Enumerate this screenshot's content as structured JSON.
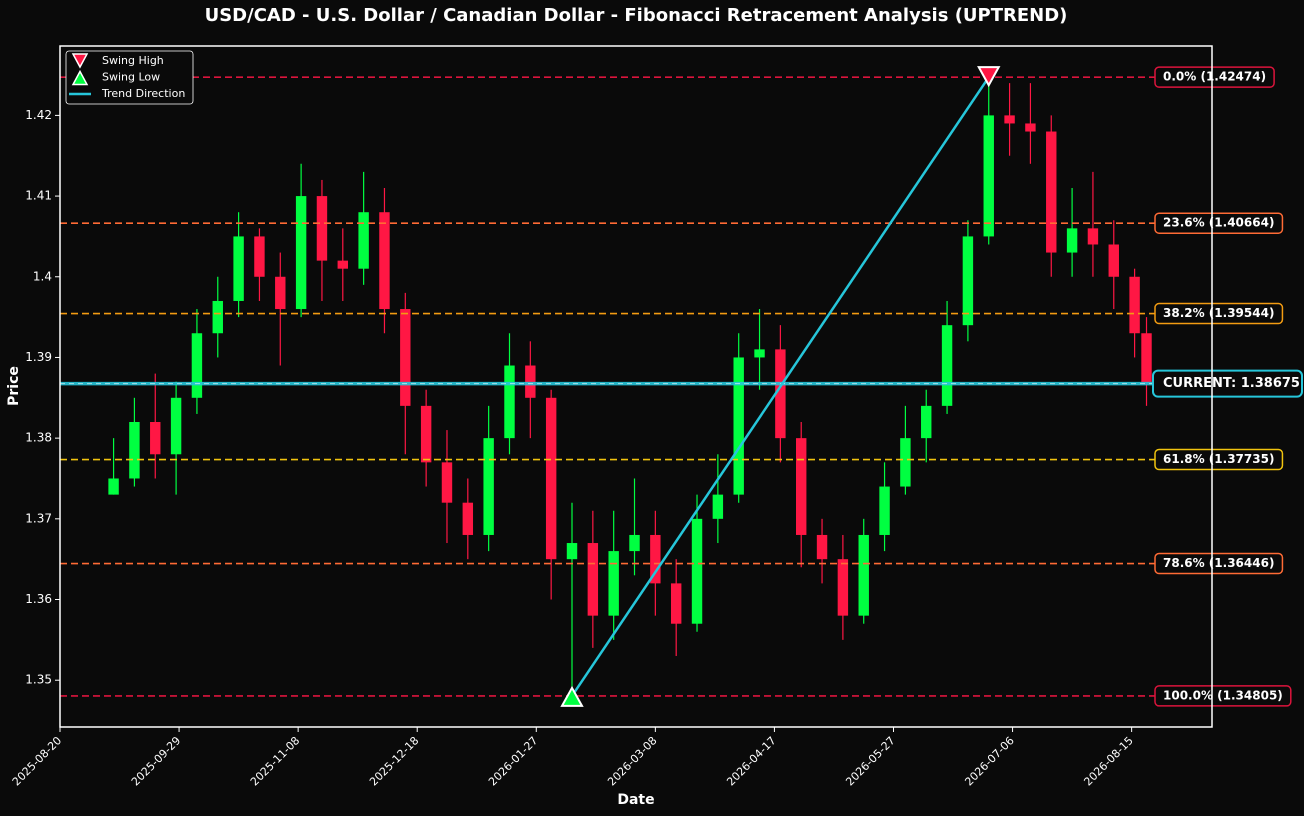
{
  "chart_data": {
    "type": "candlestick",
    "title": "USD/CAD - U.S. Dollar / Canadian Dollar - Fibonacci Retracement Analysis (UPTREND)",
    "x_label": "Date",
    "y_label": "Price",
    "x": [
      "2025-09-07",
      "2025-09-14",
      "2025-09-21",
      "2025-09-28",
      "2025-10-05",
      "2025-10-12",
      "2025-10-19",
      "2025-10-26",
      "2025-11-02",
      "2025-11-09",
      "2025-11-16",
      "2025-11-23",
      "2025-11-30",
      "2025-12-07",
      "2025-12-14",
      "2025-12-21",
      "2025-12-28",
      "2026-01-04",
      "2026-01-11",
      "2026-01-18",
      "2026-01-25",
      "2026-02-01",
      "2026-02-08",
      "2026-02-15",
      "2026-02-22",
      "2026-03-01",
      "2026-03-08",
      "2026-03-15",
      "2026-03-22",
      "2026-03-29",
      "2026-04-05",
      "2026-04-12",
      "2026-04-19",
      "2026-04-26",
      "2026-05-03",
      "2026-05-10",
      "2026-05-17",
      "2026-05-24",
      "2026-05-31",
      "2026-06-07",
      "2026-06-14",
      "2026-06-21",
      "2026-06-28",
      "2026-07-05",
      "2026-07-12",
      "2026-07-19",
      "2026-07-26",
      "2026-08-02",
      "2026-08-09",
      "2026-08-16",
      "2026-08-20"
    ],
    "open": [
      1.373,
      1.375,
      1.382,
      1.378,
      1.385,
      1.393,
      1.397,
      1.405,
      1.4,
      1.396,
      1.41,
      1.402,
      1.401,
      1.408,
      1.396,
      1.384,
      1.377,
      1.372,
      1.368,
      1.38,
      1.389,
      1.385,
      1.365,
      1.367,
      1.358,
      1.366,
      1.368,
      1.362,
      1.357,
      1.37,
      1.373,
      1.39,
      1.391,
      1.38,
      1.368,
      1.365,
      1.358,
      1.368,
      1.374,
      1.38,
      1.384,
      1.394,
      1.405,
      1.42,
      1.419,
      1.418,
      1.403,
      1.406,
      1.404,
      1.4,
      1.393
    ],
    "high": [
      1.38,
      1.385,
      1.388,
      1.387,
      1.396,
      1.4,
      1.408,
      1.406,
      1.403,
      1.414,
      1.412,
      1.406,
      1.413,
      1.411,
      1.398,
      1.386,
      1.381,
      1.375,
      1.384,
      1.393,
      1.392,
      1.386,
      1.372,
      1.371,
      1.371,
      1.375,
      1.371,
      1.365,
      1.373,
      1.378,
      1.393,
      1.396,
      1.394,
      1.382,
      1.37,
      1.368,
      1.37,
      1.377,
      1.384,
      1.386,
      1.397,
      1.407,
      1.42474,
      1.424,
      1.424,
      1.42,
      1.411,
      1.413,
      1.407,
      1.401,
      1.395
    ],
    "low": [
      1.373,
      1.374,
      1.375,
      1.373,
      1.383,
      1.39,
      1.395,
      1.397,
      1.389,
      1.395,
      1.397,
      1.397,
      1.399,
      1.393,
      1.378,
      1.374,
      1.367,
      1.365,
      1.366,
      1.378,
      1.38,
      1.36,
      1.34805,
      1.354,
      1.355,
      1.363,
      1.358,
      1.353,
      1.356,
      1.367,
      1.372,
      1.386,
      1.377,
      1.364,
      1.362,
      1.355,
      1.357,
      1.366,
      1.373,
      1.377,
      1.383,
      1.392,
      1.404,
      1.415,
      1.414,
      1.4,
      1.4,
      1.4,
      1.396,
      1.39,
      1.384
    ],
    "close": [
      1.375,
      1.382,
      1.378,
      1.385,
      1.393,
      1.397,
      1.405,
      1.4,
      1.396,
      1.41,
      1.402,
      1.401,
      1.408,
      1.396,
      1.384,
      1.377,
      1.372,
      1.368,
      1.38,
      1.389,
      1.385,
      1.365,
      1.367,
      1.358,
      1.366,
      1.368,
      1.362,
      1.357,
      1.37,
      1.373,
      1.39,
      1.391,
      1.38,
      1.368,
      1.365,
      1.358,
      1.368,
      1.374,
      1.38,
      1.384,
      1.394,
      1.405,
      1.42,
      1.419,
      1.418,
      1.403,
      1.406,
      1.404,
      1.4,
      1.393,
      1.38675
    ],
    "up_color": "#00ff41",
    "down_color": "#ff1744",
    "xlim": [
      "2025-08-20",
      "2026-09-11"
    ],
    "xticks": [
      "2025-08-20",
      "2025-09-29",
      "2025-11-08",
      "2025-12-18",
      "2026-01-27",
      "2026-03-08",
      "2026-04-17",
      "2026-05-27",
      "2026-07-06",
      "2026-08-15"
    ],
    "ylim": [
      1.3442,
      1.4286
    ],
    "yticks": [
      1.35,
      1.36,
      1.37,
      1.38,
      1.39,
      1.4,
      1.41,
      1.42
    ],
    "fib_levels": [
      {
        "label": "0.0% (1.42474)",
        "value": 1.42474,
        "color": "#dc143c"
      },
      {
        "label": "23.6% (1.40664)",
        "value": 1.40664,
        "color": "#ff6b35"
      },
      {
        "label": "38.2% (1.39544)",
        "value": 1.39544,
        "color": "#f39c12"
      },
      {
        "label": "61.8% (1.37735)",
        "value": 1.37735,
        "color": "#f1c40f"
      },
      {
        "label": "78.6% (1.36446)",
        "value": 1.36446,
        "color": "#ff6b35"
      },
      {
        "label": "100.0% (1.34805)",
        "value": 1.34805,
        "color": "#dc143c"
      }
    ],
    "current": {
      "label": "CURRENT: 1.38675",
      "value": 1.38675,
      "color": "#26c6da"
    },
    "swing_high": {
      "name": "Swing High",
      "date": "2026-06-28",
      "value": 1.42474,
      "color": "#ff1744"
    },
    "swing_low": {
      "name": "Swing Low",
      "date": "2026-02-08",
      "value": 1.34805,
      "color": "#00ff41"
    },
    "trend": {
      "name": "Trend Direction",
      "color": "#26c6da"
    },
    "legend_position": "upper-left"
  }
}
